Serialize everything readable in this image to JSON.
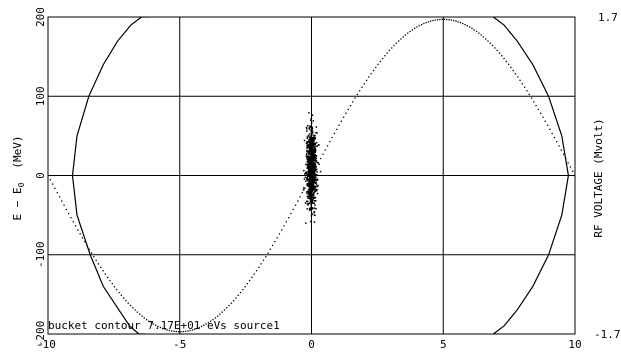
{
  "chart_data": {
    "type": "scatter",
    "title": "",
    "xlabel": "",
    "xlim": [
      -10,
      10
    ],
    "y_left": {
      "label_main": "E − E",
      "label_sub": "0",
      "label_unit": "(MeV)",
      "ylim": [
        -200,
        200
      ],
      "ticks": [
        -200,
        -100,
        0,
        100,
        200
      ],
      "tick_labels": [
        "-200",
        "-100",
        "0",
        "100",
        "200"
      ]
    },
    "y_right": {
      "label": "RF VOLTAGE (Mvolt)",
      "ylim": [
        -1.7,
        1.7
      ],
      "tick_labels": [
        "1.7",
        "-1.7"
      ]
    },
    "x_ticks": [
      -10,
      -5,
      0,
      5,
      10
    ],
    "x_tick_labels": [
      "-10",
      "-5",
      "0",
      "5",
      "10"
    ],
    "grid": {
      "x": [
        -5,
        0,
        5
      ],
      "y": [
        -100,
        0,
        100
      ]
    },
    "annotation": "bucket contour 7.17E+01 eVs source1",
    "series": [
      {
        "kind": "solid-line",
        "segments": [
          {
            "x": [
              -9.07,
              -8.9,
              -8.45,
              -7.9,
              -7.35,
              -6.85,
              -6.45,
              -6.15
            ],
            "y": [
              0,
              50,
              100,
              140,
              170,
              190,
              200,
              200
            ]
          },
          {
            "x": [
              -9.07,
              -8.9,
              -8.4,
              -7.9,
              -7.3,
              -6.9,
              -6.55,
              -6.3
            ],
            "y": [
              0,
              -50,
              -100,
              -140,
              -170,
              -190,
              -200,
              -200
            ]
          },
          {
            "x": [
              9.75,
              9.5,
              9.0,
              8.4,
              7.8,
              7.3,
              6.9
            ],
            "y": [
              0,
              50,
              100,
              140,
              170,
              190,
              200
            ]
          },
          {
            "x": [
              9.75,
              9.5,
              9.0,
              8.4,
              7.8,
              7.3,
              6.9
            ],
            "y": [
              0,
              -50,
              -100,
              -140,
              -170,
              -190,
              -200
            ]
          }
        ]
      },
      {
        "kind": "dotted-sine",
        "amplitude": 1.675,
        "period": 20,
        "x_range": [
          -10,
          10
        ]
      },
      {
        "kind": "particle-cloud",
        "center_x": 0,
        "center_y": 10,
        "spread_x": 0.18,
        "spread_y": 55,
        "y_range": [
          -65,
          103
        ],
        "count": 900
      }
    ]
  }
}
